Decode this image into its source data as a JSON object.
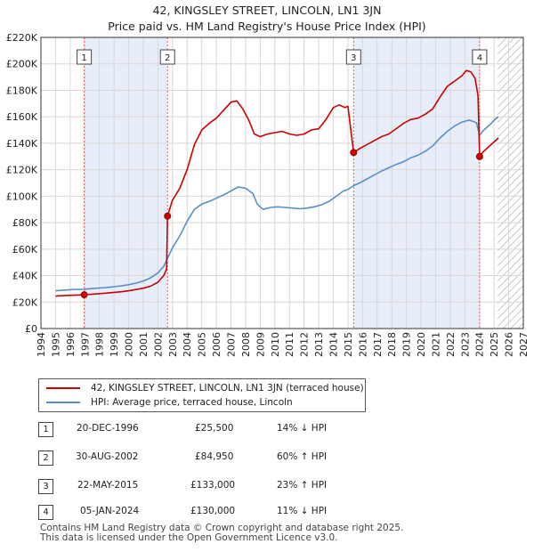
{
  "chart_data": {
    "type": "line",
    "title": "42, KINGSLEY STREET, LINCOLN, LN1 3JN",
    "subtitle": "Price paid vs. HM Land Registry's House Price Index (HPI)",
    "xlabel": "",
    "ylabel": "",
    "xlim": [
      1994,
      2027
    ],
    "ylim": [
      0,
      220000
    ],
    "grid": true,
    "x_ticks": [
      "1994",
      "1995",
      "1996",
      "1997",
      "1998",
      "1999",
      "2000",
      "2001",
      "2002",
      "2003",
      "2004",
      "2005",
      "2006",
      "2007",
      "2008",
      "2009",
      "2010",
      "2011",
      "2012",
      "2013",
      "2014",
      "2015",
      "2016",
      "2017",
      "2018",
      "2019",
      "2020",
      "2021",
      "2022",
      "2023",
      "2024",
      "2025",
      "2026",
      "2027"
    ],
    "y_ticks": [
      "£0",
      "£20K",
      "£40K",
      "£60K",
      "£80K",
      "£100K",
      "£120K",
      "£140K",
      "£160K",
      "£180K",
      "£200K",
      "£220K"
    ],
    "series": [
      {
        "name": "42, KINGSLEY STREET, LINCOLN, LN1 3JN (terraced house)",
        "color": "#cc0000",
        "x": [
          1995.0,
          1995.5,
          1996.0,
          1996.5,
          1996.96,
          1997.5,
          1998.0,
          1998.5,
          1999.0,
          1999.5,
          2000.0,
          2000.5,
          2001.0,
          2001.5,
          2002.0,
          2002.4,
          2002.6,
          2002.66,
          2003.0,
          2003.5,
          2004.0,
          2004.5,
          2005.0,
          2005.5,
          2006.0,
          2006.5,
          2007.0,
          2007.4,
          2007.8,
          2008.2,
          2008.6,
          2009.0,
          2009.5,
          2010.0,
          2010.5,
          2011.0,
          2011.5,
          2012.0,
          2012.5,
          2013.0,
          2013.5,
          2014.0,
          2014.4,
          2014.8,
          2015.0,
          2015.39,
          2015.8,
          2016.3,
          2016.8,
          2017.3,
          2017.8,
          2018.3,
          2018.8,
          2019.3,
          2019.8,
          2020.3,
          2020.8,
          2021.3,
          2021.8,
          2022.3,
          2022.8,
          2023.1,
          2023.4,
          2023.7,
          2023.9,
          2024.01,
          2024.3,
          2024.6,
          2024.9,
          2025.1,
          2025.3
        ],
        "values": [
          24500,
          24800,
          25100,
          25300,
          25500,
          26000,
          26400,
          26800,
          27300,
          27800,
          28500,
          29500,
          30500,
          32000,
          35000,
          40000,
          45000,
          84950,
          97000,
          106000,
          120000,
          139000,
          150000,
          155000,
          159000,
          165000,
          171000,
          172000,
          166000,
          158000,
          147000,
          145000,
          147000,
          148000,
          149000,
          147000,
          146000,
          147000,
          150000,
          151000,
          158000,
          167000,
          169000,
          167000,
          168000,
          133000,
          136000,
          139000,
          142000,
          145000,
          147000,
          151000,
          155000,
          158000,
          159000,
          162000,
          166000,
          175000,
          183000,
          187000,
          191000,
          195000,
          194000,
          189000,
          176000,
          130000,
          134000,
          137000,
          140000,
          142000,
          144000
        ]
      },
      {
        "name": "HPI: Average price, terraced house, Lincoln",
        "color": "#5b8ec6",
        "x": [
          1995.0,
          1995.5,
          1996.0,
          1996.5,
          1996.96,
          1997.5,
          1998.0,
          1998.5,
          1999.0,
          1999.5,
          2000.0,
          2000.5,
          2001.0,
          2001.5,
          2002.0,
          2002.4,
          2002.66,
          2003.0,
          2003.5,
          2004.0,
          2004.5,
          2005.0,
          2005.5,
          2006.0,
          2006.5,
          2007.0,
          2007.5,
          2008.0,
          2008.5,
          2008.8,
          2009.2,
          2009.7,
          2010.2,
          2010.7,
          2011.2,
          2011.7,
          2012.2,
          2012.7,
          2013.2,
          2013.7,
          2014.2,
          2014.7,
          2015.0,
          2015.39,
          2015.8,
          2016.3,
          2016.8,
          2017.3,
          2017.8,
          2018.3,
          2018.8,
          2019.3,
          2019.8,
          2020.3,
          2020.8,
          2021.3,
          2021.8,
          2022.3,
          2022.8,
          2023.3,
          2023.8,
          2024.01,
          2024.3,
          2024.8,
          2025.1,
          2025.3
        ],
        "values": [
          28500,
          29000,
          29300,
          29600,
          29700,
          30200,
          30600,
          31000,
          31600,
          32200,
          33100,
          34300,
          35900,
          38300,
          42000,
          47000,
          53000,
          61000,
          70000,
          81000,
          90000,
          94000,
          96000,
          98500,
          101000,
          104000,
          107000,
          106000,
          102000,
          94000,
          90000,
          91500,
          92000,
          91500,
          91000,
          90500,
          91000,
          92000,
          93500,
          96000,
          100000,
          104000,
          105000,
          108000,
          110000,
          113000,
          116000,
          119000,
          121500,
          124000,
          126000,
          129000,
          131000,
          134000,
          138000,
          144000,
          149000,
          153000,
          156000,
          157500,
          155500,
          146000,
          150000,
          155000,
          158500,
          160000
        ]
      }
    ],
    "annotations": [
      {
        "label": "1",
        "x": 1996.96
      },
      {
        "label": "2",
        "x": 2002.66
      },
      {
        "label": "3",
        "x": 2015.39
      },
      {
        "label": "4",
        "x": 2024.01
      }
    ],
    "sale_points": [
      {
        "x": 1996.96,
        "y": 25500
      },
      {
        "x": 2002.66,
        "y": 84950
      },
      {
        "x": 2015.39,
        "y": 133000
      },
      {
        "x": 2024.01,
        "y": 130000
      }
    ],
    "shaded_periods": [
      [
        1996.96,
        2002.66
      ],
      [
        2015.39,
        2024.01
      ]
    ],
    "hatched_from": 2025.25,
    "colors": {
      "price": "#cc0000",
      "hpi": "#5b8ec6",
      "shade": "#e8eef9",
      "grid": "#d8d8d8",
      "marker_line": "#e06060"
    }
  },
  "legend": {
    "price_label": "42, KINGSLEY STREET, LINCOLN, LN1 3JN (terraced house)",
    "hpi_label": "HPI: Average price, terraced house, Lincoln"
  },
  "sales": [
    {
      "num": "1",
      "date": "20-DEC-1996",
      "price": "£25,500",
      "hpi": "14% ↓ HPI"
    },
    {
      "num": "2",
      "date": "30-AUG-2002",
      "price": "£84,950",
      "hpi": "60% ↑ HPI"
    },
    {
      "num": "3",
      "date": "22-MAY-2015",
      "price": "£133,000",
      "hpi": "23% ↑ HPI"
    },
    {
      "num": "4",
      "date": "05-JAN-2024",
      "price": "£130,000",
      "hpi": "11% ↓ HPI"
    }
  ],
  "footer": {
    "line1": "Contains HM Land Registry data © Crown copyright and database right 2025.",
    "line2": "This data is licensed under the Open Government Licence v3.0."
  }
}
